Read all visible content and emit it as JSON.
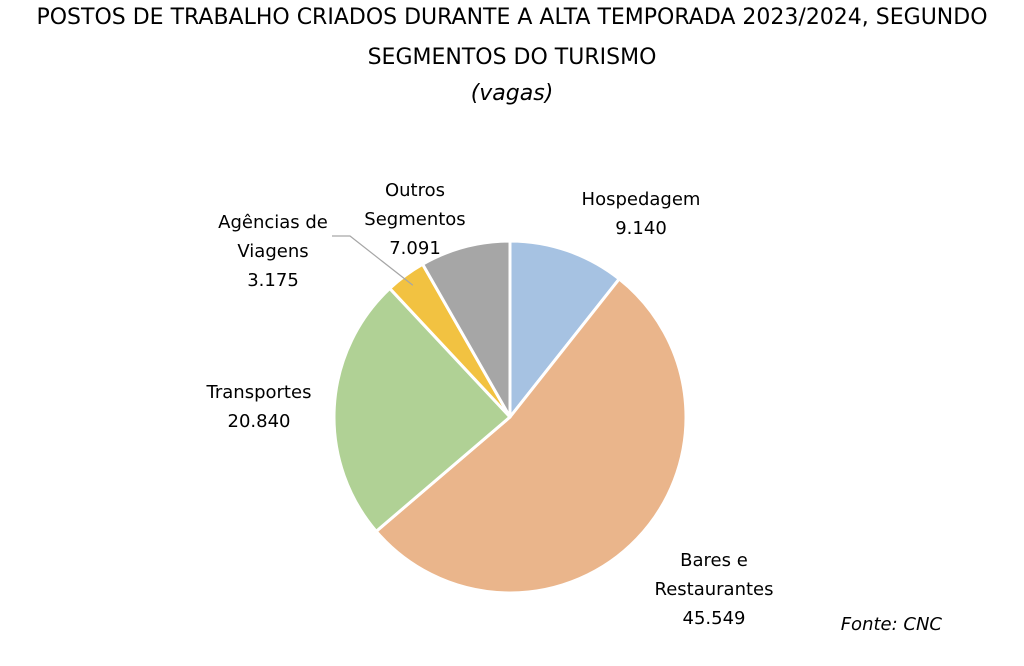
{
  "title_line1": "POSTOS DE TRABALHO CRIADOS DURANTE A ALTA TEMPORADA 2023/2024, SEGUNDO",
  "title_line2": "SEGMENTOS DO TURISMO",
  "subtitle": "(vagas)",
  "source": "Fonte: CNC",
  "chart_data": {
    "type": "pie",
    "start": "12 o'clock",
    "direction": "clockwise",
    "categories": [
      "Hospedagem",
      "Bares e Restaurantes",
      "Transportes",
      "Agências de Viagens",
      "Outros Segmentos"
    ],
    "values": [
      9140,
      45549,
      20840,
      3175,
      7091
    ],
    "value_labels": [
      "9.140",
      "45.549",
      "20.840",
      "3.175",
      "7.091"
    ],
    "label_lines": [
      [
        "Hospedagem",
        "9.140"
      ],
      [
        "Bares e",
        "Restaurantes",
        "45.549"
      ],
      [
        "Transportes",
        "20.840"
      ],
      [
        "Agências de",
        "Viagens",
        "3.175"
      ],
      [
        "Outros",
        "Segmentos",
        "7.091"
      ]
    ],
    "colors": [
      "#a6c2e2",
      "#eab58b",
      "#b0d195",
      "#f2c241",
      "#a6a6a6"
    ]
  }
}
